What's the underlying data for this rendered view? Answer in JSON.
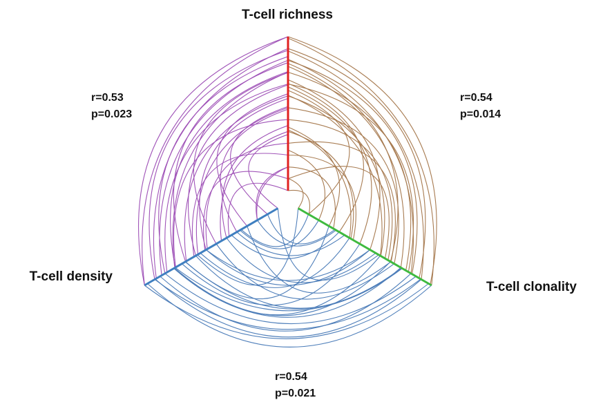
{
  "chart_data": {
    "type": "hive-plot",
    "axes": [
      {
        "id": "richness",
        "label": "T-cell richness",
        "color": "#e02020"
      },
      {
        "id": "clonality",
        "label": "T-cell clonality",
        "color": "#3fba3f"
      },
      {
        "id": "density",
        "label": "T-cell density",
        "color": "#3f7fc0"
      }
    ],
    "correlations": [
      {
        "between": [
          "richness",
          "clonality"
        ],
        "r_text": "r=0.54",
        "p_text": "p=0.014",
        "r": 0.54,
        "p": 0.014,
        "color": "#a87c52"
      },
      {
        "between": [
          "density",
          "richness"
        ],
        "r_text": "r=0.53",
        "p_text": "p=0.023",
        "r": 0.53,
        "p": 0.023,
        "color": "#a054b8"
      },
      {
        "between": [
          "clonality",
          "density"
        ],
        "r_text": "r=0.54",
        "p_text": "p=0.021",
        "r": 0.54,
        "p": 0.021,
        "color": "#4f7fba"
      }
    ]
  }
}
